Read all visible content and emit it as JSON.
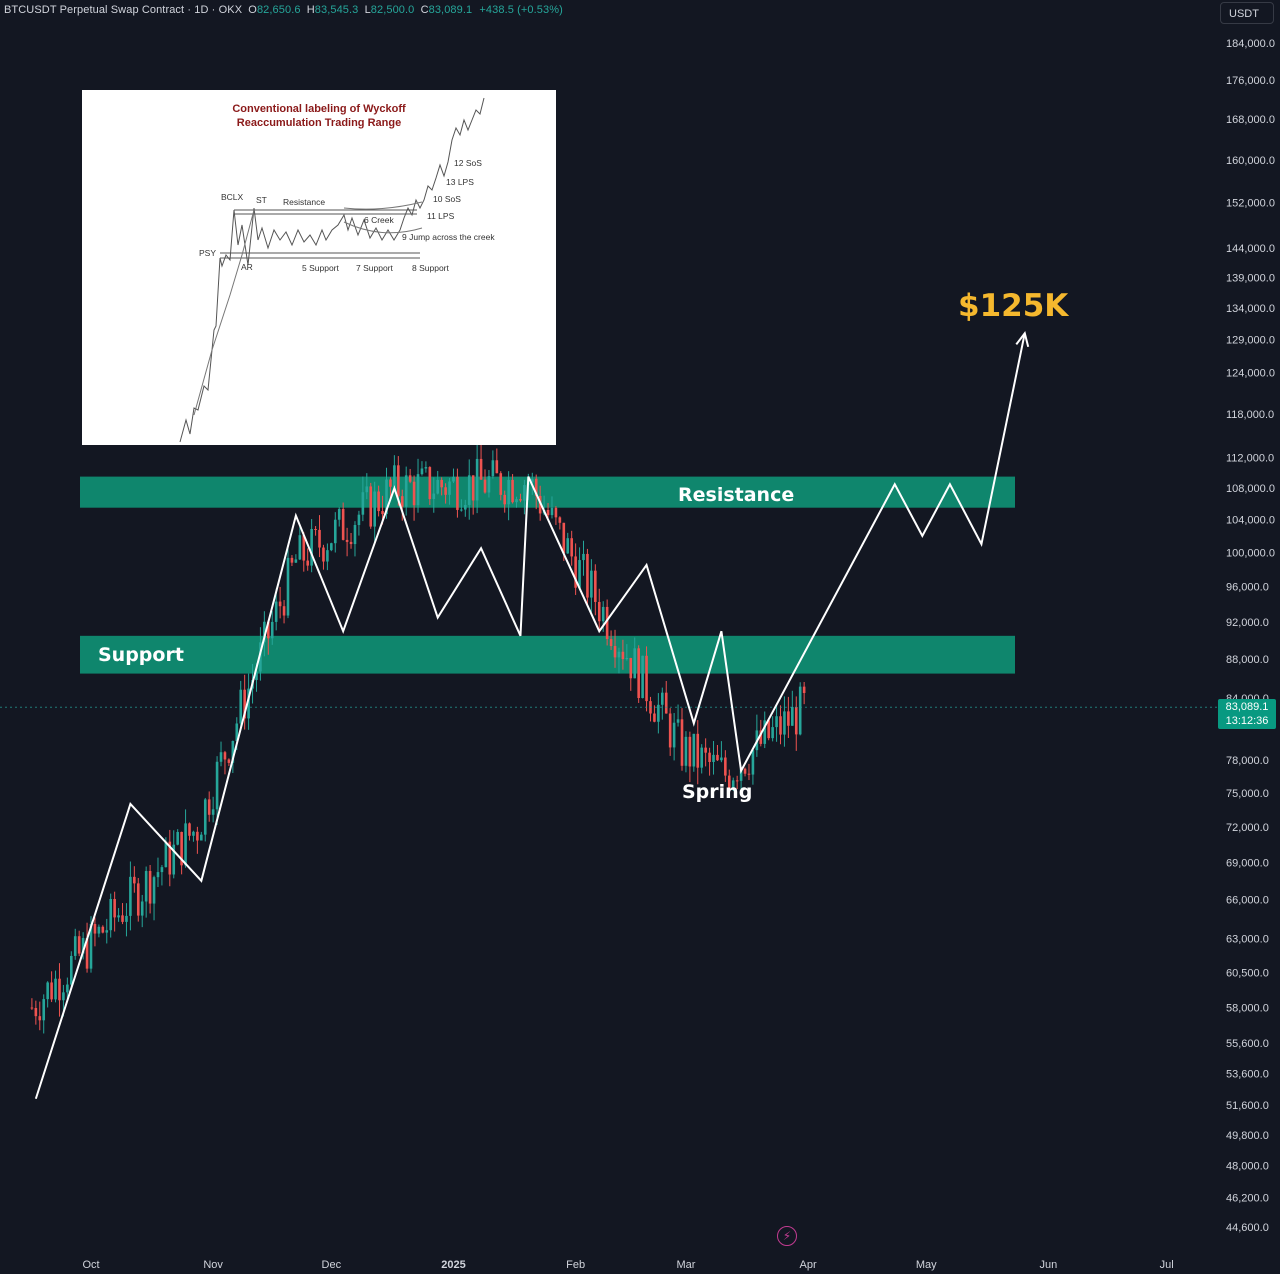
{
  "header": {
    "symbol": "BTCUSDT Perpetual Swap Contract · 1D · OKX",
    "open_label": "O",
    "open": "82,650.6",
    "high_label": "H",
    "high": "83,545.3",
    "low_label": "L",
    "low": "82,500.0",
    "close_label": "C",
    "close": "83,089.1",
    "change": "+438.5 (+0.53%)"
  },
  "currency": "USDT",
  "current_price": {
    "value": "83,089.1",
    "countdown": "13:12:36"
  },
  "price_axis": {
    "labels": [
      "184,000.0",
      "176,000.0",
      "168,000.0",
      "160,000.0",
      "152,000.0",
      "144,000.0",
      "139,000.0",
      "134,000.0",
      "129,000.0",
      "124,000.0",
      "118,000.0",
      "112,000.0",
      "108,000.0",
      "104,000.0",
      "100,000.0",
      "96,000.0",
      "92,000.0",
      "88,000.0",
      "84,000.0",
      "78,000.0",
      "75,000.0",
      "72,000.0",
      "69,000.0",
      "66,000.0",
      "63,000.0",
      "60,500.0",
      "58,000.0",
      "55,600.0",
      "53,600.0",
      "51,600.0",
      "49,800.0",
      "48,000.0",
      "46,200.0",
      "44,600.0"
    ]
  },
  "time_axis": {
    "labels": [
      "Oct",
      "Nov",
      "Dec",
      "2025",
      "Feb",
      "Mar",
      "Apr",
      "May",
      "Jun",
      "Jul"
    ]
  },
  "annotations": {
    "resistance": "Resistance",
    "support": "Support",
    "spring": "Spring",
    "target": "$125K"
  },
  "inset": {
    "title_line1": "Conventional labeling of Wyckoff",
    "title_line2": "Reaccumulation Trading Range",
    "labels": [
      "BCLX",
      "ST",
      "Resistance",
      "PSY",
      "AR",
      "5 Support",
      "7 Support",
      "8 Support",
      "6 Creek",
      "9 Jump across the creek",
      "10 SoS",
      "11 LPS",
      "12 SoS",
      "13 LPS"
    ]
  },
  "colors": {
    "background": "#131722",
    "up": "#26a69a",
    "down": "#ef5350",
    "zone": "#0f8c72",
    "target": "#f5b82e"
  },
  "chart_data": {
    "type": "candlestick",
    "symbol": "BTCUSDT",
    "interval": "1D",
    "y_scale": "log",
    "ylim": [
      43000,
      190000
    ],
    "x_range": [
      "2024-09-16",
      "2025-07-22"
    ],
    "zones": [
      {
        "name": "Resistance",
        "from": 105500,
        "to": 109500
      },
      {
        "name": "Support",
        "from": 86500,
        "to": 90500
      }
    ],
    "key_price_points": [
      {
        "date": "2024-09-16",
        "price": 58000
      },
      {
        "date": "2024-10-28",
        "price": 72000
      },
      {
        "date": "2024-11-22",
        "price": 99000
      },
      {
        "date": "2024-12-17",
        "price": 108000
      },
      {
        "date": "2025-01-20",
        "price": 109000
      },
      {
        "date": "2025-02-28",
        "price": 79000
      },
      {
        "date": "2025-03-11",
        "price": 76700
      },
      {
        "date": "2025-03-31",
        "price": 83089.1
      }
    ],
    "projection": [
      {
        "date": "2024-09-17",
        "price": 52000
      },
      {
        "date": "2024-10-11",
        "price": 74000
      },
      {
        "date": "2024-10-29",
        "price": 67500
      },
      {
        "date": "2024-11-22",
        "price": 104500
      },
      {
        "date": "2024-12-04",
        "price": 91000
      },
      {
        "date": "2024-12-17",
        "price": 108000
      },
      {
        "date": "2024-12-28",
        "price": 92500
      },
      {
        "date": "2025-01-08",
        "price": 100500
      },
      {
        "date": "2025-01-18",
        "price": 90500
      },
      {
        "date": "2025-01-20",
        "price": 109500
      },
      {
        "date": "2025-02-07",
        "price": 91000
      },
      {
        "date": "2025-02-19",
        "price": 98500
      },
      {
        "date": "2025-03-03",
        "price": 81500
      },
      {
        "date": "2025-03-10",
        "price": 91000
      },
      {
        "date": "2025-03-15",
        "price": 77000
      },
      {
        "date": "2025-04-23",
        "price": 108500
      },
      {
        "date": "2025-04-30",
        "price": 102000
      },
      {
        "date": "2025-05-07",
        "price": 108500
      },
      {
        "date": "2025-05-15",
        "price": 101000
      },
      {
        "date": "2025-05-26",
        "price": 130000
      }
    ],
    "target": 125000
  }
}
